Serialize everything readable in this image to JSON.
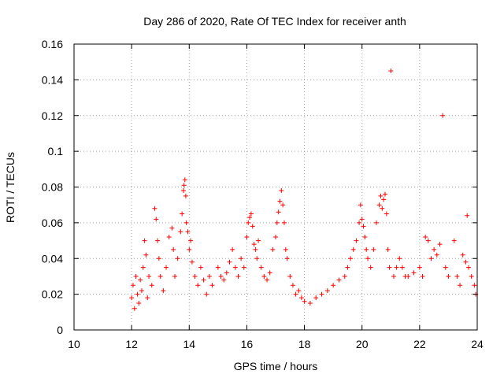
{
  "chart_data": {
    "type": "scatter",
    "title": "Day 286 of 2020, Rate Of TEC Index for receiver anth",
    "xlabel": "GPS time / hours",
    "ylabel": "ROTI / TECUs",
    "xlim": [
      10,
      24
    ],
    "ylim": [
      0,
      0.16
    ],
    "x_ticks": [
      10,
      12,
      14,
      16,
      18,
      20,
      22,
      24
    ],
    "x_tick_labels": [
      "10",
      "12",
      "14",
      "16",
      "18",
      "20",
      "22",
      "24"
    ],
    "y_ticks": [
      0,
      0.02,
      0.04,
      0.06,
      0.08,
      0.1,
      0.12,
      0.14,
      0.16
    ],
    "y_tick_labels": [
      "0",
      "0.02",
      "0.04",
      "0.06",
      "0.08",
      "0.1",
      "0.12",
      "0.14",
      "0.16"
    ],
    "grid": true,
    "marker": "+",
    "series_color": "#ff0000",
    "series": [
      {
        "name": "ROTI",
        "points": [
          [
            12.0,
            0.018
          ],
          [
            12.05,
            0.025
          ],
          [
            12.1,
            0.012
          ],
          [
            12.15,
            0.03
          ],
          [
            12.2,
            0.02
          ],
          [
            12.25,
            0.015
          ],
          [
            12.3,
            0.028
          ],
          [
            12.35,
            0.022
          ],
          [
            12.4,
            0.035
          ],
          [
            12.45,
            0.05
          ],
          [
            12.5,
            0.042
          ],
          [
            12.55,
            0.018
          ],
          [
            12.6,
            0.03
          ],
          [
            12.7,
            0.025
          ],
          [
            12.8,
            0.068
          ],
          [
            12.85,
            0.062
          ],
          [
            12.9,
            0.05
          ],
          [
            12.95,
            0.04
          ],
          [
            13.0,
            0.03
          ],
          [
            13.1,
            0.022
          ],
          [
            13.2,
            0.035
          ],
          [
            13.3,
            0.052
          ],
          [
            13.4,
            0.057
          ],
          [
            13.45,
            0.045
          ],
          [
            13.5,
            0.03
          ],
          [
            13.6,
            0.04
          ],
          [
            13.7,
            0.055
          ],
          [
            13.75,
            0.065
          ],
          [
            13.8,
            0.078
          ],
          [
            13.82,
            0.081
          ],
          [
            13.85,
            0.084
          ],
          [
            13.88,
            0.075
          ],
          [
            13.9,
            0.06
          ],
          [
            13.95,
            0.055
          ],
          [
            14.0,
            0.045
          ],
          [
            14.05,
            0.05
          ],
          [
            14.1,
            0.038
          ],
          [
            14.2,
            0.03
          ],
          [
            14.3,
            0.025
          ],
          [
            14.4,
            0.035
          ],
          [
            14.5,
            0.028
          ],
          [
            14.6,
            0.02
          ],
          [
            14.7,
            0.03
          ],
          [
            14.8,
            0.025
          ],
          [
            15.0,
            0.035
          ],
          [
            15.1,
            0.03
          ],
          [
            15.2,
            0.028
          ],
          [
            15.3,
            0.032
          ],
          [
            15.4,
            0.038
          ],
          [
            15.5,
            0.045
          ],
          [
            15.6,
            0.035
          ],
          [
            15.7,
            0.03
          ],
          [
            15.8,
            0.04
          ],
          [
            15.9,
            0.035
          ],
          [
            16.0,
            0.052
          ],
          [
            16.05,
            0.06
          ],
          [
            16.1,
            0.063
          ],
          [
            16.15,
            0.065
          ],
          [
            16.2,
            0.058
          ],
          [
            16.25,
            0.048
          ],
          [
            16.3,
            0.045
          ],
          [
            16.35,
            0.04
          ],
          [
            16.4,
            0.05
          ],
          [
            16.5,
            0.035
          ],
          [
            16.6,
            0.03
          ],
          [
            16.7,
            0.028
          ],
          [
            16.8,
            0.032
          ],
          [
            16.9,
            0.045
          ],
          [
            17.0,
            0.052
          ],
          [
            17.05,
            0.06
          ],
          [
            17.1,
            0.066
          ],
          [
            17.15,
            0.072
          ],
          [
            17.2,
            0.078
          ],
          [
            17.25,
            0.07
          ],
          [
            17.3,
            0.06
          ],
          [
            17.35,
            0.045
          ],
          [
            17.4,
            0.04
          ],
          [
            17.5,
            0.03
          ],
          [
            17.6,
            0.025
          ],
          [
            17.7,
            0.02
          ],
          [
            17.8,
            0.022
          ],
          [
            17.9,
            0.018
          ],
          [
            18.0,
            0.016
          ],
          [
            18.2,
            0.015
          ],
          [
            18.4,
            0.018
          ],
          [
            18.6,
            0.02
          ],
          [
            18.8,
            0.022
          ],
          [
            19.0,
            0.025
          ],
          [
            19.2,
            0.028
          ],
          [
            19.4,
            0.03
          ],
          [
            19.5,
            0.035
          ],
          [
            19.6,
            0.04
          ],
          [
            19.7,
            0.045
          ],
          [
            19.8,
            0.05
          ],
          [
            19.9,
            0.06
          ],
          [
            19.95,
            0.07
          ],
          [
            20.0,
            0.062
          ],
          [
            20.05,
            0.058
          ],
          [
            20.1,
            0.052
          ],
          [
            20.15,
            0.045
          ],
          [
            20.2,
            0.04
          ],
          [
            20.3,
            0.035
          ],
          [
            20.4,
            0.045
          ],
          [
            20.5,
            0.06
          ],
          [
            20.6,
            0.07
          ],
          [
            20.65,
            0.075
          ],
          [
            20.7,
            0.068
          ],
          [
            20.75,
            0.073
          ],
          [
            20.8,
            0.076
          ],
          [
            20.85,
            0.065
          ],
          [
            20.9,
            0.045
          ],
          [
            20.95,
            0.035
          ],
          [
            21.0,
            0.145
          ],
          [
            21.1,
            0.03
          ],
          [
            21.2,
            0.035
          ],
          [
            21.3,
            0.04
          ],
          [
            21.4,
            0.035
          ],
          [
            21.5,
            0.03
          ],
          [
            21.6,
            0.03
          ],
          [
            21.8,
            0.032
          ],
          [
            22.0,
            0.035
          ],
          [
            22.1,
            0.03
          ],
          [
            22.2,
            0.052
          ],
          [
            22.3,
            0.05
          ],
          [
            22.4,
            0.04
          ],
          [
            22.5,
            0.045
          ],
          [
            22.6,
            0.042
          ],
          [
            22.7,
            0.048
          ],
          [
            22.8,
            0.12
          ],
          [
            22.9,
            0.035
          ],
          [
            23.0,
            0.03
          ],
          [
            23.2,
            0.05
          ],
          [
            23.3,
            0.03
          ],
          [
            23.4,
            0.025
          ],
          [
            23.5,
            0.042
          ],
          [
            23.6,
            0.038
          ],
          [
            23.65,
            0.064
          ],
          [
            23.7,
            0.035
          ],
          [
            23.8,
            0.03
          ],
          [
            23.9,
            0.025
          ],
          [
            23.95,
            0.02
          ]
        ]
      }
    ]
  }
}
